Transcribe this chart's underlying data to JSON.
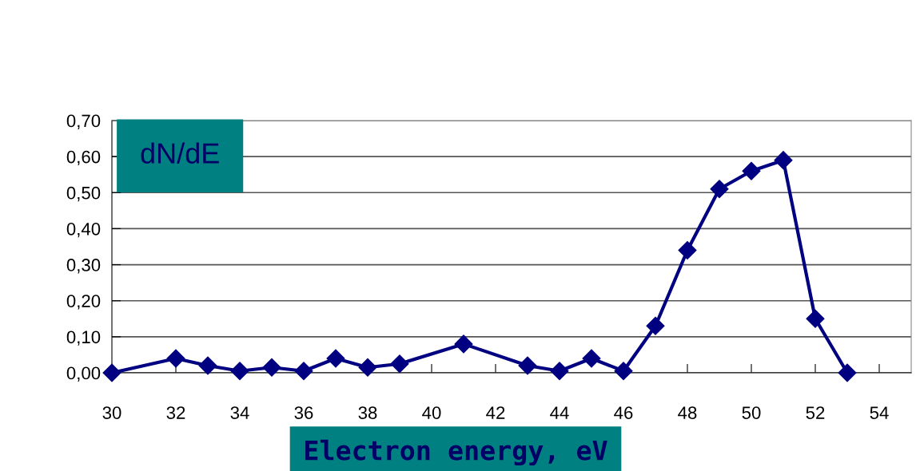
{
  "chart_data": {
    "type": "line",
    "xlabel": "Electron energy, eV",
    "annotations": [
      "dN/dE"
    ],
    "x": [
      30,
      32,
      33,
      34,
      35,
      36,
      37,
      38,
      39,
      41,
      43,
      44,
      45,
      46,
      47,
      48,
      49,
      50,
      51,
      52,
      53
    ],
    "series": [
      {
        "color": "#000080",
        "values": [
          0,
          0.04,
          0.02,
          0.005,
          0.015,
          0.005,
          0.04,
          0.015,
          0.025,
          0.08,
          0.02,
          0.005,
          0.04,
          0.005,
          0.13,
          0.34,
          0.51,
          0.56,
          0.59,
          0.15,
          0
        ]
      }
    ],
    "xlim": [
      30,
      55
    ],
    "xticks": [
      30,
      32,
      34,
      36,
      38,
      40,
      42,
      44,
      46,
      48,
      50,
      52,
      54
    ],
    "ylim": [
      0,
      0.7
    ],
    "yticks": [
      {
        "value": 0,
        "label": "0,00"
      },
      {
        "value": 0.1,
        "label": "0,10"
      },
      {
        "value": 0.2,
        "label": "0,20"
      },
      {
        "value": 0.3,
        "label": "0,30"
      },
      {
        "value": 0.4,
        "label": "0,40"
      },
      {
        "value": 0.5,
        "label": "0,50"
      },
      {
        "value": 0.6,
        "label": "0,60"
      },
      {
        "value": 0.7,
        "label": "0,70"
      }
    ],
    "grid": "y",
    "marker": "diamond",
    "line_style": "solid"
  }
}
